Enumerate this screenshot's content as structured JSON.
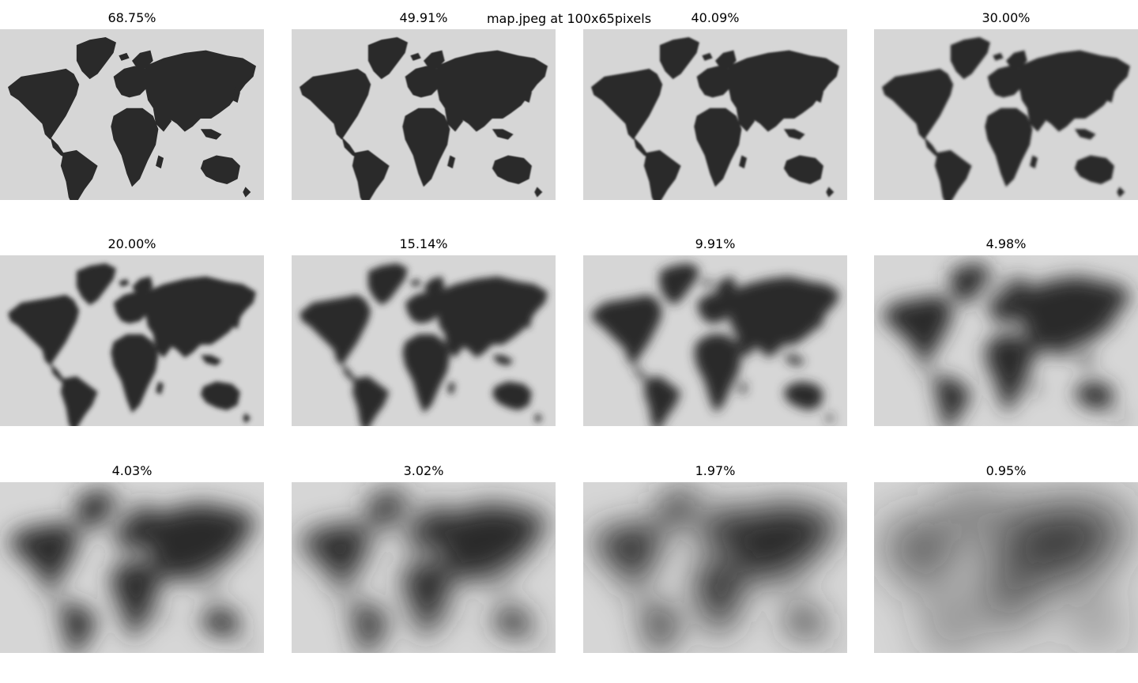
{
  "figure": {
    "title": "map.jpeg at 100x65pixels"
  },
  "colors": {
    "ocean": "#d6d6d6",
    "land": "#2a2a2a"
  },
  "panels": [
    {
      "label": "68.75%",
      "blur": 0.0
    },
    {
      "label": "49.91%",
      "blur": 0.2
    },
    {
      "label": "40.09%",
      "blur": 0.35
    },
    {
      "label": "30.00%",
      "blur": 0.5
    },
    {
      "label": "20.00%",
      "blur": 0.9
    },
    {
      "label": "15.14%",
      "blur": 1.3
    },
    {
      "label": "9.91%",
      "blur": 2.0
    },
    {
      "label": "4.98%",
      "blur": 3.6
    },
    {
      "label": "4.03%",
      "blur": 4.3
    },
    {
      "label": "3.02%",
      "blur": 5.0
    },
    {
      "label": "1.97%",
      "blur": 6.2
    },
    {
      "label": "0.95%",
      "blur": 9.5
    }
  ]
}
